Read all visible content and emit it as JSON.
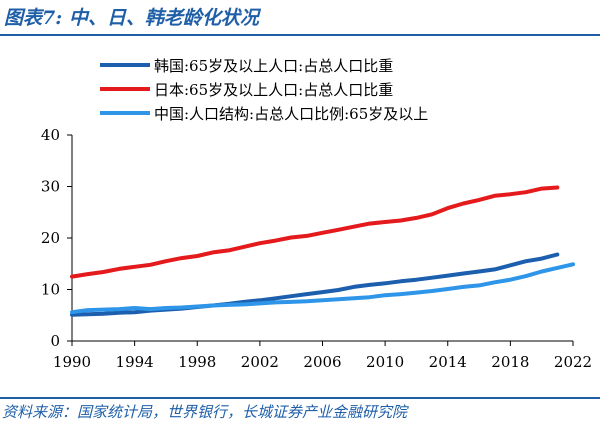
{
  "header": {
    "title": "图表7:  中、日、韩老龄化状况"
  },
  "footer": {
    "source": "资料来源：国家统计局，世界银行，长城证券产业金融研究院"
  },
  "chart_data": {
    "type": "line",
    "title": "",
    "xlabel": "",
    "ylabel": "",
    "xlim": [
      1990,
      2022
    ],
    "ylim": [
      0,
      40
    ],
    "x_ticks": [
      1990,
      1994,
      1998,
      2002,
      2006,
      2010,
      2014,
      2018,
      2022
    ],
    "y_ticks": [
      0,
      10,
      20,
      30,
      40
    ],
    "grid": false,
    "legend_position": "top",
    "series": [
      {
        "name": "韩国:65岁及以上人口:占总人口比重",
        "color": "#1b5fae",
        "x": [
          1990,
          1991,
          1992,
          1993,
          1994,
          1995,
          1996,
          1997,
          1998,
          1999,
          2000,
          2001,
          2002,
          2003,
          2004,
          2005,
          2006,
          2007,
          2008,
          2009,
          2010,
          2011,
          2012,
          2013,
          2014,
          2015,
          2016,
          2017,
          2018,
          2019,
          2020,
          2021
        ],
        "values": [
          5.1,
          5.2,
          5.3,
          5.5,
          5.6,
          5.9,
          6.1,
          6.3,
          6.6,
          6.9,
          7.2,
          7.6,
          7.9,
          8.3,
          8.7,
          9.1,
          9.5,
          9.9,
          10.5,
          10.9,
          11.2,
          11.6,
          11.9,
          12.3,
          12.7,
          13.1,
          13.5,
          13.9,
          14.7,
          15.5,
          16.0,
          16.8
        ]
      },
      {
        "name": "日本:65岁及以上人口:占总人口比重",
        "color": "#e41a1c",
        "x": [
          1990,
          1991,
          1992,
          1993,
          1994,
          1995,
          1996,
          1997,
          1998,
          1999,
          2000,
          2001,
          2002,
          2003,
          2004,
          2005,
          2006,
          2007,
          2008,
          2009,
          2010,
          2011,
          2012,
          2013,
          2014,
          2015,
          2016,
          2017,
          2018,
          2019,
          2020,
          2021
        ],
        "values": [
          12.5,
          13.0,
          13.4,
          14.0,
          14.4,
          14.8,
          15.5,
          16.1,
          16.5,
          17.2,
          17.6,
          18.3,
          19.0,
          19.5,
          20.1,
          20.4,
          21.0,
          21.6,
          22.2,
          22.8,
          23.1,
          23.4,
          23.9,
          24.6,
          25.8,
          26.7,
          27.4,
          28.2,
          28.5,
          28.9,
          29.6,
          29.8
        ]
      },
      {
        "name": "中国:人口结构:占总人口比例:65岁及以上",
        "color": "#2e95e8",
        "x": [
          1990,
          1991,
          1992,
          1993,
          1994,
          1995,
          1996,
          1997,
          1998,
          1999,
          2000,
          2001,
          2002,
          2003,
          2004,
          2005,
          2006,
          2007,
          2008,
          2009,
          2010,
          2011,
          2012,
          2013,
          2014,
          2015,
          2016,
          2017,
          2018,
          2019,
          2020,
          2021,
          2022
        ],
        "values": [
          5.6,
          6.0,
          6.1,
          6.2,
          6.4,
          6.2,
          6.4,
          6.5,
          6.7,
          6.9,
          7.0,
          7.1,
          7.3,
          7.5,
          7.6,
          7.7,
          7.9,
          8.1,
          8.3,
          8.5,
          8.9,
          9.1,
          9.4,
          9.7,
          10.1,
          10.5,
          10.8,
          11.4,
          11.9,
          12.6,
          13.5,
          14.2,
          14.9
        ]
      }
    ]
  }
}
